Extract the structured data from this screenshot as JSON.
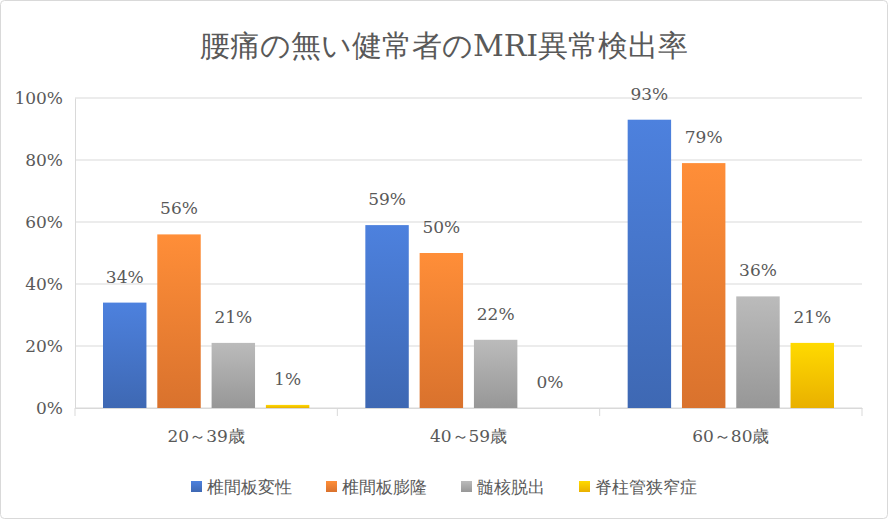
{
  "chart_data": {
    "type": "bar",
    "title": "腰痛の無い健常者のMRI異常検出率",
    "categories": [
      "20～39歳",
      "40～59歳",
      "60～80歳"
    ],
    "series": [
      {
        "name": "椎間板変性",
        "color": "#4472c4",
        "values": [
          34,
          59,
          93
        ],
        "value_labels": [
          "34%",
          "59%",
          "93%"
        ]
      },
      {
        "name": "椎間板膨隆",
        "color": "#ed7d31",
        "values": [
          56,
          50,
          79
        ],
        "value_labels": [
          "56%",
          "50%",
          "79%"
        ]
      },
      {
        "name": "髄核脱出",
        "color": "#a5a5a5",
        "values": [
          21,
          22,
          36
        ],
        "value_labels": [
          "21%",
          "22%",
          "36%"
        ]
      },
      {
        "name": "脊柱管狭窄症",
        "color": "#ffc000",
        "values": [
          1,
          0,
          21
        ],
        "value_labels": [
          "1%",
          "0%",
          "21%"
        ]
      }
    ],
    "ylim": [
      0,
      100
    ],
    "yticks": [
      {
        "value": 0,
        "label": "0%"
      },
      {
        "value": 20,
        "label": "20%"
      },
      {
        "value": 40,
        "label": "40%"
      },
      {
        "value": 60,
        "label": "60%"
      },
      {
        "value": 80,
        "label": "80%"
      },
      {
        "value": 100,
        "label": "100%"
      }
    ],
    "grid": true,
    "legend": "bottom",
    "data_labels": true
  }
}
